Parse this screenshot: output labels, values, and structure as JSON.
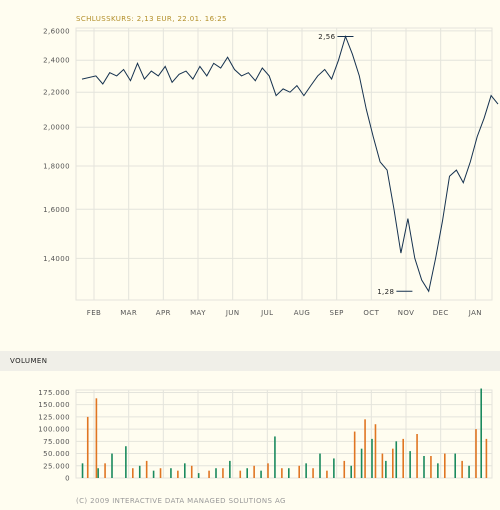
{
  "headline": "SCHLUSSKURS: 2,13 EUR, 22.01. 16:25",
  "volume_title": "VOLUMEN",
  "footer": "(C) 2009 INTERACTIVE DATA MANAGED SOLUTIONS AG",
  "colors": {
    "line": "#16324f",
    "grid": "#e4e4dc",
    "volume_green": "#1a8a5e",
    "volume_orange": "#e07522",
    "text": "#555555",
    "headline": "#b38f2a"
  },
  "chart_data": [
    {
      "type": "line",
      "title": "SCHLUSSKURS: 2,13 EUR, 22.01. 16:25",
      "scale": "log",
      "ylim": [
        1.25,
        2.62
      ],
      "y_ticks": [
        "2,6000",
        "2,4000",
        "2,2000",
        "2,0000",
        "1,8000",
        "1,6000",
        "1,4000"
      ],
      "y_tick_values": [
        2.6,
        2.4,
        2.2,
        2.0,
        1.8,
        1.6,
        1.4
      ],
      "x_ticks": [
        "FEB",
        "MAR",
        "APR",
        "MAY",
        "JUN",
        "JUL",
        "AUG",
        "SEP",
        "OCT",
        "NOV",
        "DEC",
        "JAN"
      ],
      "grid": true,
      "annotations": [
        {
          "label": "2,56",
          "value": 2.56,
          "month_index": 7.6
        },
        {
          "label": "1,28",
          "value": 1.28,
          "month_index": 9.3
        }
      ],
      "x": [
        0.0,
        0.4,
        0.6,
        0.8,
        1.0,
        1.2,
        1.4,
        1.6,
        1.8,
        2.0,
        2.2,
        2.4,
        2.6,
        2.8,
        3.0,
        3.2,
        3.4,
        3.6,
        3.8,
        4.0,
        4.2,
        4.4,
        4.6,
        4.8,
        5.0,
        5.2,
        5.4,
        5.6,
        5.8,
        6.0,
        6.2,
        6.4,
        6.6,
        6.8,
        7.0,
        7.2,
        7.4,
        7.6,
        7.8,
        8.0,
        8.2,
        8.4,
        8.6,
        8.8,
        9.0,
        9.2,
        9.4,
        9.6,
        9.8,
        10.0,
        10.2,
        10.4,
        10.6,
        10.8,
        11.0,
        11.2,
        11.4,
        11.6,
        11.8,
        12.0
      ],
      "values": [
        2.28,
        2.3,
        2.25,
        2.32,
        2.3,
        2.34,
        2.27,
        2.38,
        2.28,
        2.33,
        2.3,
        2.36,
        2.26,
        2.31,
        2.33,
        2.28,
        2.36,
        2.3,
        2.38,
        2.35,
        2.42,
        2.34,
        2.3,
        2.32,
        2.27,
        2.35,
        2.3,
        2.18,
        2.22,
        2.2,
        2.24,
        2.18,
        2.24,
        2.3,
        2.34,
        2.28,
        2.4,
        2.56,
        2.44,
        2.3,
        2.1,
        1.95,
        1.82,
        1.78,
        1.6,
        1.42,
        1.56,
        1.4,
        1.32,
        1.28,
        1.4,
        1.55,
        1.75,
        1.78,
        1.72,
        1.82,
        1.95,
        2.05,
        2.18,
        2.13
      ]
    },
    {
      "type": "bar",
      "title": "VOLUMEN",
      "ylim": [
        0,
        180000
      ],
      "y_ticks": [
        "175.000",
        "150.000",
        "125.000",
        "100.000",
        "75.000",
        "50.000",
        "25.000",
        "0"
      ],
      "y_tick_values": [
        175000,
        150000,
        125000,
        100000,
        75000,
        50000,
        25000,
        0
      ],
      "series": [
        {
          "color": "#1a8a5e",
          "x": [
            0.05,
            0.5,
            0.9,
            1.3,
            1.7,
            2.1,
            2.6,
            3.0,
            3.4,
            3.9,
            4.3,
            4.8,
            5.2,
            5.6,
            6.0,
            6.5,
            6.9,
            7.3,
            7.8,
            8.1,
            8.4,
            8.8,
            9.1,
            9.5,
            9.9,
            10.3,
            10.8,
            11.2,
            11.55
          ],
          "values": [
            30000,
            20000,
            50000,
            65000,
            25000,
            15000,
            20000,
            30000,
            10000,
            20000,
            35000,
            20000,
            15000,
            85000,
            20000,
            30000,
            50000,
            40000,
            25000,
            60000,
            80000,
            35000,
            75000,
            55000,
            45000,
            30000,
            50000,
            25000,
            183000
          ]
        },
        {
          "color": "#e07522",
          "x": [
            0.2,
            0.45,
            0.7,
            1.5,
            1.9,
            2.3,
            2.8,
            3.2,
            3.7,
            4.1,
            4.6,
            5.0,
            5.4,
            5.8,
            6.3,
            6.7,
            7.1,
            7.6,
            7.9,
            8.2,
            8.5,
            8.7,
            9.0,
            9.3,
            9.7,
            10.1,
            10.5,
            11.0,
            11.4,
            11.7
          ],
          "values": [
            125000,
            163000,
            30000,
            20000,
            35000,
            20000,
            15000,
            25000,
            15000,
            20000,
            15000,
            25000,
            30000,
            20000,
            25000,
            20000,
            15000,
            35000,
            95000,
            120000,
            110000,
            50000,
            60000,
            80000,
            90000,
            45000,
            50000,
            35000,
            100000,
            80000
          ]
        }
      ]
    }
  ]
}
